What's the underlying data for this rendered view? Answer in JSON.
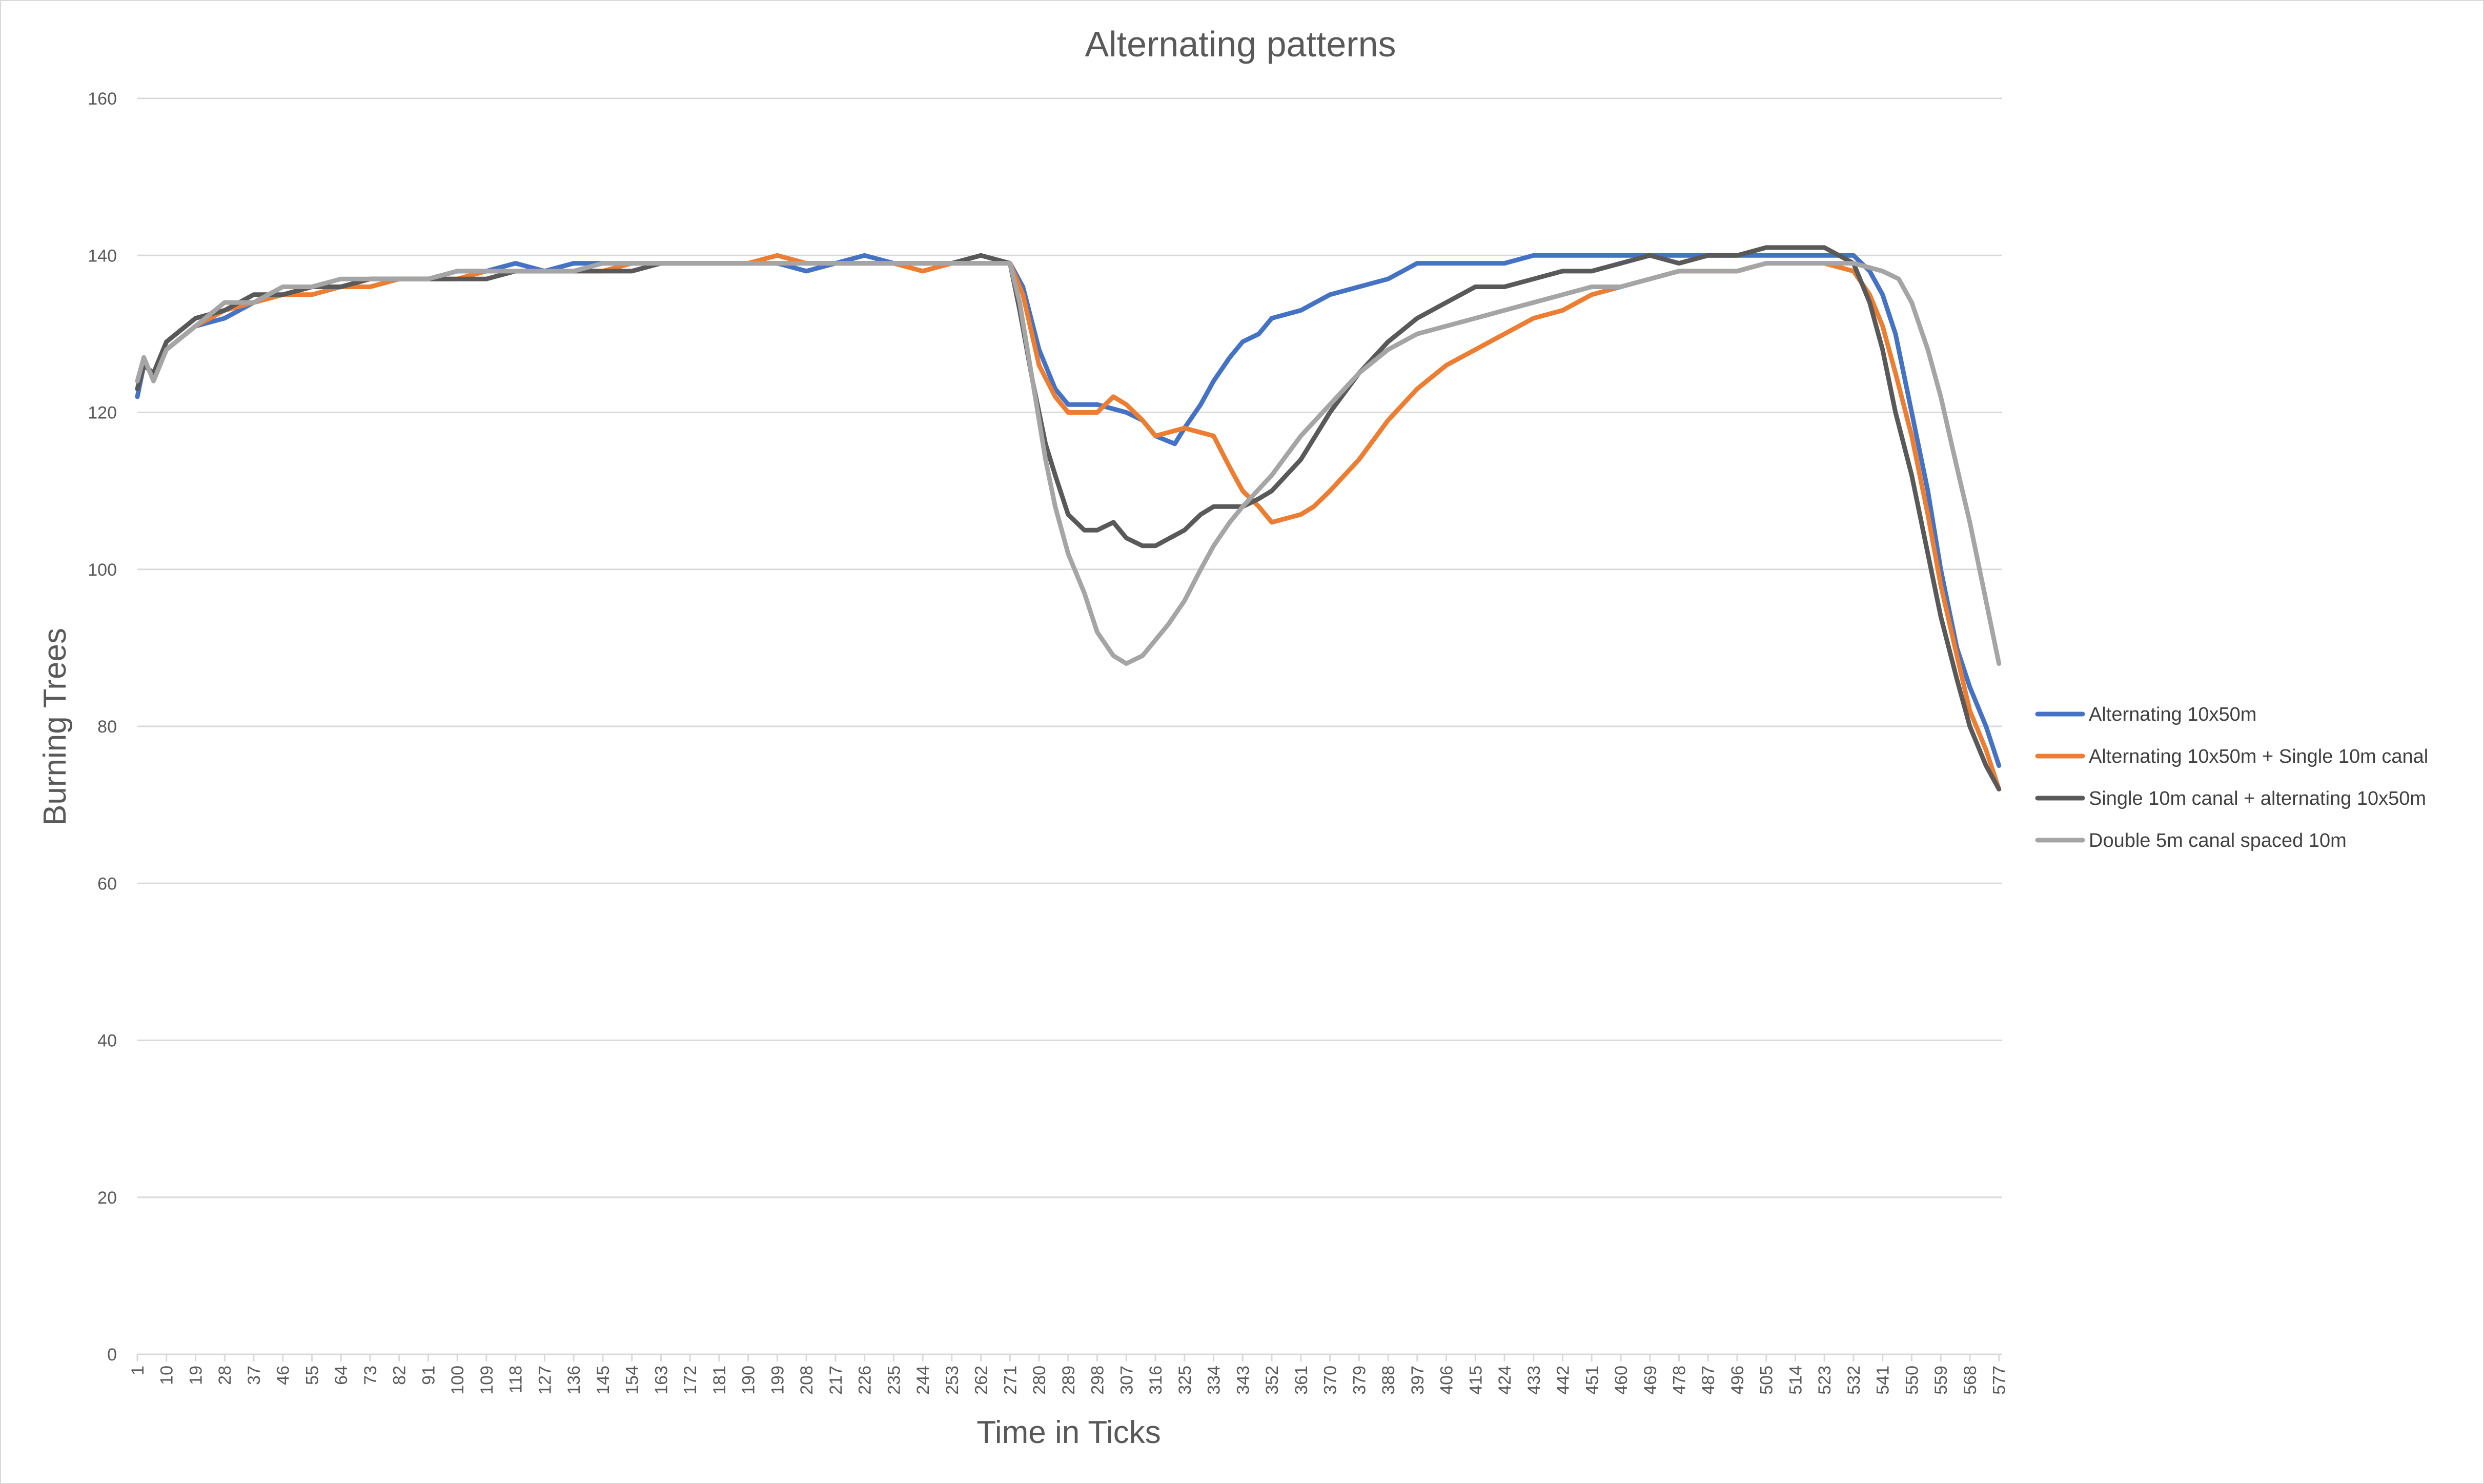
{
  "chart_data": {
    "type": "line",
    "title": "Alternating patterns",
    "xlabel": "Time in Ticks",
    "ylabel": "Burning Trees",
    "ylim": [
      0,
      160
    ],
    "yticks": [
      0,
      20,
      40,
      60,
      80,
      100,
      120,
      140,
      160
    ],
    "xlim": [
      1,
      578
    ],
    "xticks": [
      1,
      10,
      19,
      28,
      37,
      46,
      55,
      64,
      73,
      82,
      91,
      100,
      109,
      118,
      127,
      136,
      145,
      154,
      163,
      172,
      181,
      190,
      199,
      208,
      217,
      226,
      235,
      244,
      253,
      262,
      271,
      280,
      289,
      298,
      307,
      316,
      325,
      334,
      343,
      352,
      361,
      370,
      379,
      388,
      397,
      406,
      415,
      424,
      433,
      442,
      451,
      460,
      469,
      478,
      487,
      496,
      505,
      514,
      523,
      532,
      541,
      550,
      559,
      568,
      577
    ],
    "grid": true,
    "legend_position": "right",
    "series": [
      {
        "name": "Alternating 10x50m",
        "color": "#4472c4",
        "points": [
          [
            1,
            122
          ],
          [
            3,
            126
          ],
          [
            6,
            125
          ],
          [
            10,
            128
          ],
          [
            19,
            131
          ],
          [
            28,
            132
          ],
          [
            37,
            134
          ],
          [
            46,
            135
          ],
          [
            55,
            136
          ],
          [
            64,
            136
          ],
          [
            73,
            137
          ],
          [
            82,
            137
          ],
          [
            91,
            137
          ],
          [
            100,
            138
          ],
          [
            109,
            138
          ],
          [
            118,
            139
          ],
          [
            127,
            138
          ],
          [
            136,
            139
          ],
          [
            145,
            139
          ],
          [
            154,
            139
          ],
          [
            163,
            139
          ],
          [
            172,
            139
          ],
          [
            181,
            139
          ],
          [
            190,
            139
          ],
          [
            199,
            139
          ],
          [
            208,
            138
          ],
          [
            217,
            139
          ],
          [
            226,
            140
          ],
          [
            235,
            139
          ],
          [
            244,
            139
          ],
          [
            253,
            139
          ],
          [
            262,
            139
          ],
          [
            271,
            139
          ],
          [
            275,
            136
          ],
          [
            280,
            128
          ],
          [
            285,
            123
          ],
          [
            289,
            121
          ],
          [
            298,
            121
          ],
          [
            307,
            120
          ],
          [
            312,
            119
          ],
          [
            316,
            117
          ],
          [
            322,
            116
          ],
          [
            325,
            118
          ],
          [
            330,
            121
          ],
          [
            334,
            124
          ],
          [
            339,
            127
          ],
          [
            343,
            129
          ],
          [
            348,
            130
          ],
          [
            352,
            132
          ],
          [
            361,
            133
          ],
          [
            370,
            135
          ],
          [
            379,
            136
          ],
          [
            388,
            137
          ],
          [
            397,
            139
          ],
          [
            406,
            139
          ],
          [
            415,
            139
          ],
          [
            424,
            139
          ],
          [
            433,
            140
          ],
          [
            442,
            140
          ],
          [
            451,
            140
          ],
          [
            460,
            140
          ],
          [
            469,
            140
          ],
          [
            478,
            140
          ],
          [
            487,
            140
          ],
          [
            496,
            140
          ],
          [
            505,
            140
          ],
          [
            514,
            140
          ],
          [
            523,
            140
          ],
          [
            532,
            140
          ],
          [
            537,
            138
          ],
          [
            541,
            135
          ],
          [
            545,
            130
          ],
          [
            550,
            120
          ],
          [
            555,
            110
          ],
          [
            559,
            100
          ],
          [
            564,
            90
          ],
          [
            568,
            85
          ],
          [
            573,
            80
          ],
          [
            577,
            75
          ]
        ]
      },
      {
        "name": "Alternating 10x50m + Single 10m canal",
        "color": "#ed7d31",
        "points": [
          [
            1,
            123
          ],
          [
            3,
            126
          ],
          [
            6,
            125
          ],
          [
            10,
            128
          ],
          [
            19,
            131
          ],
          [
            28,
            133
          ],
          [
            37,
            134
          ],
          [
            46,
            135
          ],
          [
            55,
            135
          ],
          [
            64,
            136
          ],
          [
            73,
            136
          ],
          [
            82,
            137
          ],
          [
            91,
            137
          ],
          [
            100,
            137
          ],
          [
            109,
            138
          ],
          [
            118,
            138
          ],
          [
            127,
            138
          ],
          [
            136,
            138
          ],
          [
            145,
            138
          ],
          [
            154,
            139
          ],
          [
            163,
            139
          ],
          [
            172,
            139
          ],
          [
            181,
            139
          ],
          [
            190,
            139
          ],
          [
            199,
            140
          ],
          [
            208,
            139
          ],
          [
            217,
            139
          ],
          [
            226,
            139
          ],
          [
            235,
            139
          ],
          [
            244,
            138
          ],
          [
            253,
            139
          ],
          [
            262,
            140
          ],
          [
            271,
            139
          ],
          [
            275,
            135
          ],
          [
            280,
            126
          ],
          [
            285,
            122
          ],
          [
            289,
            120
          ],
          [
            298,
            120
          ],
          [
            303,
            122
          ],
          [
            307,
            121
          ],
          [
            312,
            119
          ],
          [
            316,
            117
          ],
          [
            325,
            118
          ],
          [
            334,
            117
          ],
          [
            339,
            113
          ],
          [
            343,
            110
          ],
          [
            348,
            108
          ],
          [
            352,
            106
          ],
          [
            361,
            107
          ],
          [
            365,
            108
          ],
          [
            370,
            110
          ],
          [
            379,
            114
          ],
          [
            388,
            119
          ],
          [
            397,
            123
          ],
          [
            406,
            126
          ],
          [
            415,
            128
          ],
          [
            424,
            130
          ],
          [
            433,
            132
          ],
          [
            442,
            133
          ],
          [
            451,
            135
          ],
          [
            460,
            136
          ],
          [
            469,
            137
          ],
          [
            478,
            138
          ],
          [
            487,
            138
          ],
          [
            496,
            138
          ],
          [
            505,
            139
          ],
          [
            514,
            139
          ],
          [
            523,
            139
          ],
          [
            532,
            138
          ],
          [
            537,
            135
          ],
          [
            541,
            131
          ],
          [
            545,
            125
          ],
          [
            550,
            117
          ],
          [
            555,
            107
          ],
          [
            559,
            98
          ],
          [
            564,
            89
          ],
          [
            568,
            82
          ],
          [
            573,
            77
          ],
          [
            577,
            72
          ]
        ]
      },
      {
        "name": "Single 10m canal + alternating 10x50m",
        "color": "#595959",
        "points": [
          [
            1,
            123
          ],
          [
            3,
            126
          ],
          [
            6,
            125
          ],
          [
            10,
            129
          ],
          [
            19,
            132
          ],
          [
            28,
            133
          ],
          [
            37,
            135
          ],
          [
            46,
            135
          ],
          [
            55,
            136
          ],
          [
            64,
            136
          ],
          [
            73,
            137
          ],
          [
            82,
            137
          ],
          [
            91,
            137
          ],
          [
            100,
            137
          ],
          [
            109,
            137
          ],
          [
            118,
            138
          ],
          [
            127,
            138
          ],
          [
            136,
            138
          ],
          [
            145,
            138
          ],
          [
            154,
            138
          ],
          [
            163,
            139
          ],
          [
            172,
            139
          ],
          [
            181,
            139
          ],
          [
            190,
            139
          ],
          [
            199,
            139
          ],
          [
            208,
            139
          ],
          [
            217,
            139
          ],
          [
            226,
            139
          ],
          [
            235,
            139
          ],
          [
            244,
            139
          ],
          [
            253,
            139
          ],
          [
            262,
            140
          ],
          [
            271,
            139
          ],
          [
            274,
            133
          ],
          [
            278,
            124
          ],
          [
            282,
            116
          ],
          [
            285,
            112
          ],
          [
            289,
            107
          ],
          [
            294,
            105
          ],
          [
            298,
            105
          ],
          [
            303,
            106
          ],
          [
            307,
            104
          ],
          [
            312,
            103
          ],
          [
            316,
            103
          ],
          [
            325,
            105
          ],
          [
            330,
            107
          ],
          [
            334,
            108
          ],
          [
            343,
            108
          ],
          [
            348,
            109
          ],
          [
            352,
            110
          ],
          [
            361,
            114
          ],
          [
            370,
            120
          ],
          [
            379,
            125
          ],
          [
            388,
            129
          ],
          [
            397,
            132
          ],
          [
            406,
            134
          ],
          [
            415,
            136
          ],
          [
            424,
            136
          ],
          [
            433,
            137
          ],
          [
            442,
            138
          ],
          [
            451,
            138
          ],
          [
            460,
            139
          ],
          [
            469,
            140
          ],
          [
            478,
            139
          ],
          [
            487,
            140
          ],
          [
            496,
            140
          ],
          [
            505,
            141
          ],
          [
            514,
            141
          ],
          [
            523,
            141
          ],
          [
            532,
            139
          ],
          [
            537,
            134
          ],
          [
            541,
            128
          ],
          [
            545,
            120
          ],
          [
            550,
            112
          ],
          [
            555,
            102
          ],
          [
            559,
            94
          ],
          [
            564,
            86
          ],
          [
            568,
            80
          ],
          [
            573,
            75
          ],
          [
            577,
            72
          ]
        ]
      },
      {
        "name": "Double 5m canal spaced 10m",
        "color": "#a5a5a5",
        "points": [
          [
            1,
            124
          ],
          [
            3,
            127
          ],
          [
            6,
            124
          ],
          [
            10,
            128
          ],
          [
            19,
            131
          ],
          [
            28,
            134
          ],
          [
            37,
            134
          ],
          [
            46,
            136
          ],
          [
            55,
            136
          ],
          [
            64,
            137
          ],
          [
            73,
            137
          ],
          [
            82,
            137
          ],
          [
            91,
            137
          ],
          [
            100,
            138
          ],
          [
            109,
            138
          ],
          [
            118,
            138
          ],
          [
            127,
            138
          ],
          [
            136,
            138
          ],
          [
            145,
            139
          ],
          [
            154,
            139
          ],
          [
            163,
            139
          ],
          [
            172,
            139
          ],
          [
            181,
            139
          ],
          [
            190,
            139
          ],
          [
            199,
            139
          ],
          [
            208,
            139
          ],
          [
            217,
            139
          ],
          [
            226,
            139
          ],
          [
            235,
            139
          ],
          [
            244,
            139
          ],
          [
            253,
            139
          ],
          [
            262,
            139
          ],
          [
            271,
            139
          ],
          [
            274,
            134
          ],
          [
            278,
            124
          ],
          [
            282,
            114
          ],
          [
            285,
            108
          ],
          [
            289,
            102
          ],
          [
            294,
            97
          ],
          [
            298,
            92
          ],
          [
            303,
            89
          ],
          [
            307,
            88
          ],
          [
            312,
            89
          ],
          [
            316,
            91
          ],
          [
            320,
            93
          ],
          [
            325,
            96
          ],
          [
            330,
            100
          ],
          [
            334,
            103
          ],
          [
            339,
            106
          ],
          [
            343,
            108
          ],
          [
            352,
            112
          ],
          [
            361,
            117
          ],
          [
            370,
            121
          ],
          [
            379,
            125
          ],
          [
            388,
            128
          ],
          [
            397,
            130
          ],
          [
            406,
            131
          ],
          [
            415,
            132
          ],
          [
            424,
            133
          ],
          [
            433,
            134
          ],
          [
            442,
            135
          ],
          [
            451,
            136
          ],
          [
            460,
            136
          ],
          [
            469,
            137
          ],
          [
            478,
            138
          ],
          [
            487,
            138
          ],
          [
            496,
            138
          ],
          [
            505,
            139
          ],
          [
            514,
            139
          ],
          [
            523,
            139
          ],
          [
            532,
            139
          ],
          [
            541,
            138
          ],
          [
            546,
            137
          ],
          [
            550,
            134
          ],
          [
            555,
            128
          ],
          [
            559,
            122
          ],
          [
            564,
            113
          ],
          [
            568,
            106
          ],
          [
            573,
            96
          ],
          [
            577,
            88
          ]
        ]
      }
    ]
  }
}
